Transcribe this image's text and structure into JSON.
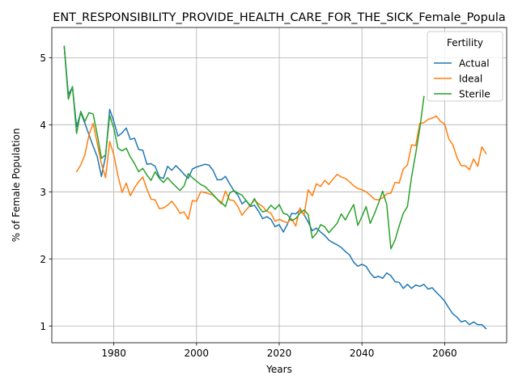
{
  "chart_data": {
    "type": "line",
    "title": "ENT_RESPONSIBILITY_PROVIDE_HEALTH_CARE_FOR_THE_SICK_Female_Popula",
    "xlabel": "Years",
    "ylabel": "% of Female Population",
    "xlim": [
      1965,
      2075
    ],
    "ylim": [
      0.75,
      5.45
    ],
    "xticks": [
      1980,
      2000,
      2020,
      2040,
      2060
    ],
    "yticks": [
      1,
      2,
      3,
      4,
      5
    ],
    "grid": true,
    "legend_title": "Fertility",
    "legend_position": "top-right",
    "series": [
      {
        "name": "Actual",
        "color": "#1f77b4",
        "points": [
          [
            1968,
            5.17
          ],
          [
            1969,
            4.45
          ],
          [
            1970,
            4.56
          ],
          [
            1971,
            3.97
          ],
          [
            1972,
            4.18
          ],
          [
            1973,
            4.02
          ],
          [
            1974,
            3.85
          ],
          [
            1975,
            3.68
          ],
          [
            1976,
            3.52
          ],
          [
            1977,
            3.23
          ],
          [
            1978,
            3.53
          ],
          [
            1979,
            4.23
          ],
          [
            1980,
            4.05
          ],
          [
            1981,
            3.83
          ],
          [
            1982,
            3.88
          ],
          [
            1983,
            3.95
          ],
          [
            1984,
            3.78
          ],
          [
            1985,
            3.8
          ],
          [
            1986,
            3.63
          ],
          [
            1987,
            3.62
          ],
          [
            1988,
            3.41
          ],
          [
            1989,
            3.42
          ],
          [
            1990,
            3.38
          ],
          [
            1991,
            3.22
          ],
          [
            1992,
            3.2
          ],
          [
            1993,
            3.38
          ],
          [
            1994,
            3.32
          ],
          [
            1995,
            3.39
          ],
          [
            1996,
            3.33
          ],
          [
            1997,
            3.26
          ],
          [
            1998,
            3.2
          ],
          [
            1999,
            3.34
          ],
          [
            2000,
            3.37
          ],
          [
            2001,
            3.39
          ],
          [
            2002,
            3.41
          ],
          [
            2003,
            3.4
          ],
          [
            2004,
            3.32
          ],
          [
            2005,
            3.18
          ],
          [
            2006,
            3.18
          ],
          [
            2007,
            3.23
          ],
          [
            2008,
            3.12
          ],
          [
            2009,
            3.02
          ],
          [
            2010,
            2.95
          ],
          [
            2011,
            2.82
          ],
          [
            2012,
            2.87
          ],
          [
            2013,
            2.78
          ],
          [
            2014,
            2.8
          ],
          [
            2015,
            2.71
          ],
          [
            2016,
            2.6
          ],
          [
            2017,
            2.63
          ],
          [
            2018,
            2.59
          ],
          [
            2019,
            2.48
          ],
          [
            2020,
            2.51
          ],
          [
            2021,
            2.4
          ],
          [
            2022,
            2.52
          ],
          [
            2023,
            2.68
          ],
          [
            2024,
            2.67
          ],
          [
            2025,
            2.73
          ],
          [
            2026,
            2.66
          ],
          [
            2027,
            2.55
          ],
          [
            2028,
            2.42
          ],
          [
            2029,
            2.46
          ],
          [
            2030,
            2.4
          ],
          [
            2031,
            2.35
          ],
          [
            2032,
            2.28
          ],
          [
            2033,
            2.24
          ],
          [
            2034,
            2.21
          ],
          [
            2035,
            2.17
          ],
          [
            2036,
            2.11
          ],
          [
            2037,
            2.06
          ],
          [
            2038,
            1.95
          ],
          [
            2039,
            1.89
          ],
          [
            2040,
            1.92
          ],
          [
            2041,
            1.89
          ],
          [
            2042,
            1.79
          ],
          [
            2043,
            1.72
          ],
          [
            2044,
            1.74
          ],
          [
            2045,
            1.71
          ],
          [
            2046,
            1.79
          ],
          [
            2047,
            1.75
          ],
          [
            2048,
            1.66
          ],
          [
            2049,
            1.65
          ],
          [
            2050,
            1.56
          ],
          [
            2051,
            1.62
          ],
          [
            2052,
            1.56
          ],
          [
            2053,
            1.61
          ],
          [
            2054,
            1.59
          ],
          [
            2055,
            1.62
          ],
          [
            2056,
            1.55
          ],
          [
            2057,
            1.57
          ],
          [
            2058,
            1.5
          ],
          [
            2059,
            1.44
          ],
          [
            2060,
            1.37
          ],
          [
            2061,
            1.27
          ],
          [
            2062,
            1.18
          ],
          [
            2063,
            1.13
          ],
          [
            2064,
            1.06
          ],
          [
            2065,
            1.08
          ],
          [
            2066,
            1.02
          ],
          [
            2067,
            1.06
          ],
          [
            2068,
            1.02
          ],
          [
            2069,
            1.02
          ],
          [
            2070,
            0.96
          ]
        ]
      },
      {
        "name": "Ideal",
        "color": "#ff7f0e",
        "points": [
          [
            1971,
            3.3
          ],
          [
            1972,
            3.4
          ],
          [
            1973,
            3.55
          ],
          [
            1974,
            3.85
          ],
          [
            1975,
            4.02
          ],
          [
            1976,
            3.72
          ],
          [
            1977,
            3.42
          ],
          [
            1978,
            3.21
          ],
          [
            1979,
            3.75
          ],
          [
            1980,
            3.55
          ],
          [
            1981,
            3.24
          ],
          [
            1982,
            2.99
          ],
          [
            1983,
            3.13
          ],
          [
            1984,
            2.94
          ],
          [
            1985,
            3.06
          ],
          [
            1986,
            3.15
          ],
          [
            1987,
            3.22
          ],
          [
            1988,
            3.04
          ],
          [
            1989,
            2.89
          ],
          [
            1990,
            2.88
          ],
          [
            1991,
            2.75
          ],
          [
            1992,
            2.76
          ],
          [
            1993,
            2.8
          ],
          [
            1994,
            2.86
          ],
          [
            1995,
            2.78
          ],
          [
            1996,
            2.68
          ],
          [
            1997,
            2.7
          ],
          [
            1998,
            2.59
          ],
          [
            1999,
            2.87
          ],
          [
            2000,
            2.86
          ],
          [
            2001,
            3.0
          ],
          [
            2002,
            2.99
          ],
          [
            2003,
            2.97
          ],
          [
            2004,
            2.95
          ],
          [
            2005,
            2.89
          ],
          [
            2006,
            2.82
          ],
          [
            2007,
            3.01
          ],
          [
            2008,
            2.88
          ],
          [
            2009,
            2.87
          ],
          [
            2010,
            2.78
          ],
          [
            2011,
            2.65
          ],
          [
            2012,
            2.73
          ],
          [
            2013,
            2.8
          ],
          [
            2014,
            2.88
          ],
          [
            2015,
            2.82
          ],
          [
            2016,
            2.78
          ],
          [
            2017,
            2.71
          ],
          [
            2018,
            2.68
          ],
          [
            2019,
            2.56
          ],
          [
            2020,
            2.59
          ],
          [
            2021,
            2.56
          ],
          [
            2022,
            2.54
          ],
          [
            2023,
            2.6
          ],
          [
            2024,
            2.49
          ],
          [
            2025,
            2.76
          ],
          [
            2026,
            2.65
          ],
          [
            2027,
            3.03
          ],
          [
            2028,
            2.94
          ],
          [
            2029,
            3.12
          ],
          [
            2030,
            3.08
          ],
          [
            2031,
            3.17
          ],
          [
            2032,
            3.11
          ],
          [
            2033,
            3.19
          ],
          [
            2034,
            3.26
          ],
          [
            2035,
            3.22
          ],
          [
            2036,
            3.2
          ],
          [
            2037,
            3.15
          ],
          [
            2038,
            3.09
          ],
          [
            2039,
            3.05
          ],
          [
            2040,
            3.03
          ],
          [
            2041,
            3.0
          ],
          [
            2042,
            2.95
          ],
          [
            2043,
            2.89
          ],
          [
            2044,
            2.88
          ],
          [
            2045,
            2.91
          ],
          [
            2046,
            2.97
          ],
          [
            2047,
            2.98
          ],
          [
            2048,
            3.14
          ],
          [
            2049,
            3.13
          ],
          [
            2050,
            3.34
          ],
          [
            2051,
            3.4
          ],
          [
            2052,
            3.7
          ],
          [
            2053,
            3.69
          ],
          [
            2054,
            4.02
          ],
          [
            2055,
            4.03
          ],
          [
            2056,
            4.08
          ],
          [
            2057,
            4.1
          ],
          [
            2058,
            4.13
          ],
          [
            2059,
            4.05
          ],
          [
            2060,
            4.01
          ],
          [
            2061,
            3.79
          ],
          [
            2062,
            3.7
          ],
          [
            2063,
            3.51
          ],
          [
            2064,
            3.39
          ],
          [
            2065,
            3.39
          ],
          [
            2066,
            3.33
          ],
          [
            2067,
            3.49
          ],
          [
            2068,
            3.38
          ],
          [
            2069,
            3.67
          ],
          [
            2070,
            3.57
          ]
        ]
      },
      {
        "name": "Sterile",
        "color": "#2ca02c",
        "points": [
          [
            1968,
            5.17
          ],
          [
            1969,
            4.38
          ],
          [
            1970,
            4.57
          ],
          [
            1971,
            3.87
          ],
          [
            1972,
            4.2
          ],
          [
            1973,
            4.05
          ],
          [
            1974,
            4.18
          ],
          [
            1975,
            4.16
          ],
          [
            1976,
            3.85
          ],
          [
            1977,
            3.5
          ],
          [
            1978,
            3.55
          ],
          [
            1979,
            4.14
          ],
          [
            1980,
            3.95
          ],
          [
            1981,
            3.65
          ],
          [
            1982,
            3.61
          ],
          [
            1983,
            3.65
          ],
          [
            1984,
            3.52
          ],
          [
            1985,
            3.42
          ],
          [
            1986,
            3.3
          ],
          [
            1987,
            3.35
          ],
          [
            1988,
            3.25
          ],
          [
            1989,
            3.17
          ],
          [
            1990,
            3.3
          ],
          [
            1991,
            3.2
          ],
          [
            1992,
            3.14
          ],
          [
            1993,
            3.21
          ],
          [
            1994,
            3.14
          ],
          [
            1995,
            3.08
          ],
          [
            1996,
            3.02
          ],
          [
            1997,
            3.09
          ],
          [
            1998,
            3.27
          ],
          [
            1999,
            3.21
          ],
          [
            2000,
            3.16
          ],
          [
            2001,
            3.11
          ],
          [
            2002,
            3.08
          ],
          [
            2003,
            3.02
          ],
          [
            2004,
            2.96
          ],
          [
            2005,
            2.89
          ],
          [
            2006,
            2.84
          ],
          [
            2007,
            2.78
          ],
          [
            2008,
            2.98
          ],
          [
            2009,
            3.02
          ],
          [
            2010,
            2.98
          ],
          [
            2011,
            2.95
          ],
          [
            2012,
            2.87
          ],
          [
            2013,
            2.79
          ],
          [
            2014,
            2.9
          ],
          [
            2015,
            2.78
          ],
          [
            2016,
            2.7
          ],
          [
            2017,
            2.72
          ],
          [
            2018,
            2.8
          ],
          [
            2019,
            2.74
          ],
          [
            2020,
            2.81
          ],
          [
            2021,
            2.68
          ],
          [
            2022,
            2.66
          ],
          [
            2023,
            2.57
          ],
          [
            2024,
            2.6
          ],
          [
            2025,
            2.68
          ],
          [
            2026,
            2.73
          ],
          [
            2027,
            2.66
          ],
          [
            2028,
            2.31
          ],
          [
            2029,
            2.38
          ],
          [
            2030,
            2.51
          ],
          [
            2031,
            2.48
          ],
          [
            2032,
            2.39
          ],
          [
            2033,
            2.46
          ],
          [
            2034,
            2.53
          ],
          [
            2035,
            2.67
          ],
          [
            2036,
            2.58
          ],
          [
            2037,
            2.7
          ],
          [
            2038,
            2.81
          ],
          [
            2039,
            2.5
          ],
          [
            2040,
            2.63
          ],
          [
            2041,
            2.78
          ],
          [
            2042,
            2.53
          ],
          [
            2043,
            2.67
          ],
          [
            2044,
            2.83
          ],
          [
            2045,
            3.01
          ],
          [
            2046,
            2.81
          ],
          [
            2047,
            2.15
          ],
          [
            2048,
            2.28
          ],
          [
            2049,
            2.49
          ],
          [
            2050,
            2.68
          ],
          [
            2051,
            2.78
          ],
          [
            2052,
            3.22
          ],
          [
            2053,
            3.57
          ],
          [
            2054,
            3.95
          ],
          [
            2055,
            4.42
          ]
        ]
      }
    ]
  }
}
